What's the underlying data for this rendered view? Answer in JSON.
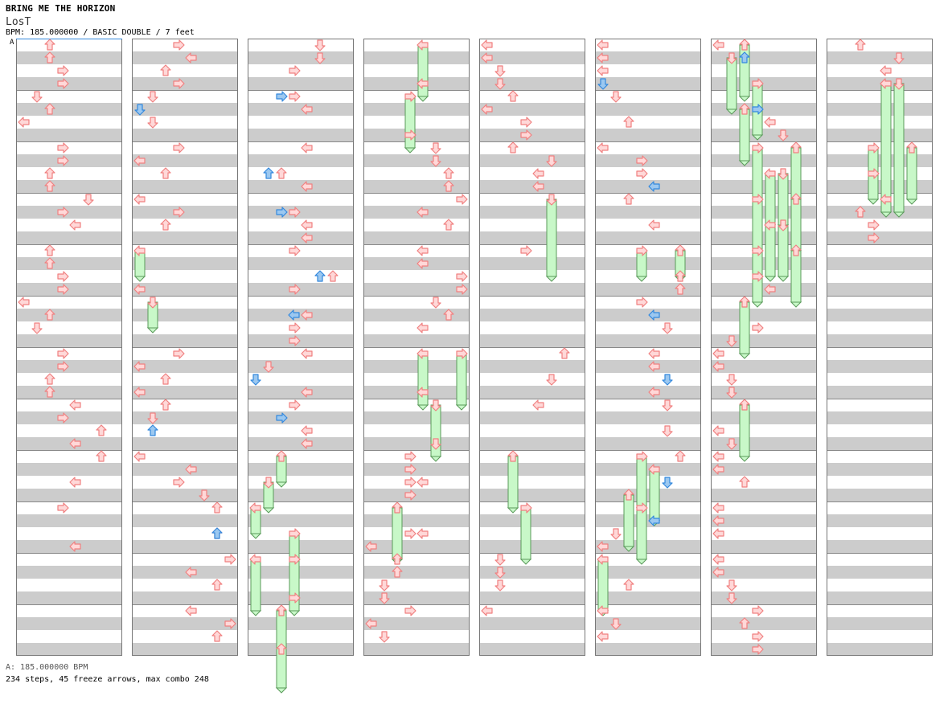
{
  "header": {
    "artist": "BRING ME THE HORIZON",
    "song_title": "LosT",
    "meta": "BPM: 185.000000 / BASIC DOUBLE / 7 feet",
    "bpm_marker": "A"
  },
  "footer": {
    "bpm_line": "A: 185.000000 BPM",
    "stats_line": "234 steps, 45 freeze arrows, max combo 248"
  },
  "colors": {
    "note_red": "#f08080",
    "note_red_fill": "#ffd8d8",
    "note_blue": "#3388dd",
    "note_blue_fill": "#9cc8f0",
    "freeze_fill": "#c8f8c8",
    "freeze_stroke": "#5a9a5a",
    "stripe_grey": "#cccccc",
    "border": "#777777"
  },
  "chart_data": {
    "type": "table",
    "columns": 8,
    "measures_per_column": 12,
    "lanes": [
      "L1",
      "D1",
      "U1",
      "R1",
      "L2",
      "D2",
      "U2",
      "R2"
    ],
    "lane_directions": [
      "left",
      "down",
      "up",
      "right",
      "left",
      "down",
      "up",
      "right"
    ],
    "notes": [
      {
        "c": 1,
        "l": 3,
        "p": 0
      },
      {
        "c": 1,
        "l": 3,
        "p": 1
      },
      {
        "c": 1,
        "l": 4,
        "p": 2
      },
      {
        "c": 1,
        "l": 4,
        "p": 3
      },
      {
        "c": 1,
        "l": 2,
        "p": 4
      },
      {
        "c": 1,
        "l": 3,
        "p": 5
      },
      {
        "c": 1,
        "l": 1,
        "p": 6
      },
      {
        "c": 1,
        "l": 4,
        "p": 8
      },
      {
        "c": 1,
        "l": 4,
        "p": 9
      },
      {
        "c": 1,
        "l": 3,
        "p": 10
      },
      {
        "c": 1,
        "l": 3,
        "p": 11
      },
      {
        "c": 1,
        "l": 6,
        "p": 12
      },
      {
        "c": 1,
        "l": 4,
        "p": 13
      },
      {
        "c": 1,
        "l": 5,
        "p": 14
      },
      {
        "c": 1,
        "l": 3,
        "p": 16
      },
      {
        "c": 1,
        "l": 3,
        "p": 17
      },
      {
        "c": 1,
        "l": 4,
        "p": 18
      },
      {
        "c": 1,
        "l": 4,
        "p": 19
      },
      {
        "c": 1,
        "l": 1,
        "p": 20
      },
      {
        "c": 1,
        "l": 3,
        "p": 21
      },
      {
        "c": 1,
        "l": 2,
        "p": 22
      },
      {
        "c": 1,
        "l": 4,
        "p": 24
      },
      {
        "c": 1,
        "l": 4,
        "p": 25
      },
      {
        "c": 1,
        "l": 3,
        "p": 26
      },
      {
        "c": 1,
        "l": 3,
        "p": 27
      },
      {
        "c": 1,
        "l": 5,
        "p": 28
      },
      {
        "c": 1,
        "l": 4,
        "p": 29
      },
      {
        "c": 1,
        "l": 7,
        "p": 30
      },
      {
        "c": 1,
        "l": 5,
        "p": 31
      },
      {
        "c": 1,
        "l": 7,
        "p": 32
      },
      {
        "c": 1,
        "l": 5,
        "p": 34
      },
      {
        "c": 1,
        "l": 4,
        "p": 36
      },
      {
        "c": 1,
        "l": 5,
        "p": 39
      },
      {
        "c": 2,
        "l": 4,
        "p": 0
      },
      {
        "c": 2,
        "l": 5,
        "p": 1
      },
      {
        "c": 2,
        "l": 3,
        "p": 2
      },
      {
        "c": 2,
        "l": 4,
        "p": 3
      },
      {
        "c": 2,
        "l": 2,
        "p": 4
      },
      {
        "c": 2,
        "l": 2,
        "p": 6
      },
      {
        "c": 2,
        "l": 4,
        "p": 8
      },
      {
        "c": 2,
        "l": 0,
        "p": 9
      },
      {
        "c": 2,
        "l": 3,
        "p": 10
      },
      {
        "c": 2,
        "l": 0,
        "p": 12
      },
      {
        "c": 2,
        "l": 4,
        "p": 13
      },
      {
        "c": 2,
        "l": 3,
        "p": 14
      },
      {
        "c": 2,
        "l": 1,
        "p": 16,
        "f": 1
      },
      {
        "c": 2,
        "l": 1,
        "p": 19
      },
      {
        "c": 2,
        "l": 2,
        "p": 20,
        "f": 1
      },
      {
        "c": 2,
        "l": 4,
        "p": 24
      },
      {
        "c": 2,
        "l": 0,
        "p": 25
      },
      {
        "c": 2,
        "l": 3,
        "p": 26
      },
      {
        "c": 2,
        "l": 1,
        "p": 27
      },
      {
        "c": 2,
        "l": 3,
        "p": 28
      },
      {
        "c": 2,
        "l": 2,
        "p": 29
      },
      {
        "c": 2,
        "l": 1,
        "p": 32
      },
      {
        "c": 2,
        "l": 5,
        "p": 33
      },
      {
        "c": 2,
        "l": 4,
        "p": 34
      },
      {
        "c": 2,
        "l": 6,
        "p": 35
      },
      {
        "c": 2,
        "l": 7,
        "p": 36
      },
      {
        "c": 2,
        "l": 7,
        "p": 38
      },
      {
        "c": 2,
        "l": 8,
        "p": 40
      },
      {
        "c": 2,
        "l": 5,
        "p": 41
      },
      {
        "c": 2,
        "l": 7,
        "p": 42
      },
      {
        "c": 2,
        "l": 5,
        "p": 44
      },
      {
        "c": 2,
        "l": 8,
        "p": 45
      },
      {
        "c": 2,
        "l": 7,
        "p": 46
      },
      {
        "c": 3,
        "l": 6,
        "p": 0
      },
      {
        "c": 3,
        "l": 6,
        "p": 1
      },
      {
        "c": 3,
        "l": 4,
        "p": 2
      },
      {
        "c": 3,
        "l": 4,
        "p": 4
      },
      {
        "c": 3,
        "l": 5,
        "p": 5
      },
      {
        "c": 3,
        "l": 5,
        "p": 8
      },
      {
        "c": 3,
        "l": 3,
        "p": 10
      },
      {
        "c": 3,
        "l": 5,
        "p": 11
      },
      {
        "c": 3,
        "l": 4,
        "p": 13
      },
      {
        "c": 3,
        "l": 5,
        "p": 14
      },
      {
        "c": 3,
        "l": 5,
        "p": 15
      },
      {
        "c": 3,
        "l": 4,
        "p": 16
      },
      {
        "c": 3,
        "l": 7,
        "p": 18
      },
      {
        "c": 3,
        "l": 4,
        "p": 19
      },
      {
        "c": 3,
        "l": 5,
        "p": 21
      },
      {
        "c": 3,
        "l": 4,
        "p": 22
      },
      {
        "c": 3,
        "l": 4,
        "p": 23
      },
      {
        "c": 3,
        "l": 5,
        "p": 24
      },
      {
        "c": 3,
        "l": 2,
        "p": 25
      },
      {
        "c": 3,
        "l": 5,
        "p": 27
      },
      {
        "c": 3,
        "l": 4,
        "p": 28
      },
      {
        "c": 3,
        "l": 5,
        "p": 30
      },
      {
        "c": 3,
        "l": 5,
        "p": 31
      },
      {
        "c": 3,
        "l": 3,
        "p": 32,
        "f": 1
      },
      {
        "c": 3,
        "l": 2,
        "p": 34,
        "f": 1
      },
      {
        "c": 3,
        "l": 1,
        "p": 36,
        "f": 1
      },
      {
        "c": 3,
        "l": 4,
        "p": 38,
        "f": 1
      },
      {
        "c": 3,
        "l": 1,
        "p": 40,
        "f": 2
      },
      {
        "c": 3,
        "l": 4,
        "p": 40,
        "f": 2
      },
      {
        "c": 3,
        "l": 4,
        "p": 43
      },
      {
        "c": 3,
        "l": 3,
        "p": 44,
        "f": 3
      },
      {
        "c": 3,
        "l": 3,
        "p": 47
      },
      {
        "c": 4,
        "l": 5,
        "p": 0,
        "f": 2
      },
      {
        "c": 4,
        "l": 5,
        "p": 3
      },
      {
        "c": 4,
        "l": 4,
        "p": 4,
        "f": 2
      },
      {
        "c": 4,
        "l": 4,
        "p": 7
      },
      {
        "c": 4,
        "l": 6,
        "p": 8
      },
      {
        "c": 4,
        "l": 6,
        "p": 9
      },
      {
        "c": 4,
        "l": 7,
        "p": 10
      },
      {
        "c": 4,
        "l": 7,
        "p": 11
      },
      {
        "c": 4,
        "l": 8,
        "p": 12
      },
      {
        "c": 4,
        "l": 5,
        "p": 13
      },
      {
        "c": 4,
        "l": 7,
        "p": 14
      },
      {
        "c": 4,
        "l": 5,
        "p": 16
      },
      {
        "c": 4,
        "l": 5,
        "p": 17
      },
      {
        "c": 4,
        "l": 8,
        "p": 18
      },
      {
        "c": 4,
        "l": 8,
        "p": 19
      },
      {
        "c": 4,
        "l": 6,
        "p": 20
      },
      {
        "c": 4,
        "l": 7,
        "p": 21
      },
      {
        "c": 4,
        "l": 5,
        "p": 22
      },
      {
        "c": 4,
        "l": 5,
        "p": 24,
        "f": 2
      },
      {
        "c": 4,
        "l": 8,
        "p": 24,
        "f": 2
      },
      {
        "c": 4,
        "l": 5,
        "p": 27
      },
      {
        "c": 4,
        "l": 6,
        "p": 28,
        "f": 2
      },
      {
        "c": 4,
        "l": 6,
        "p": 31
      },
      {
        "c": 4,
        "l": 4,
        "p": 32
      },
      {
        "c": 4,
        "l": 4,
        "p": 33
      },
      {
        "c": 4,
        "l": 4,
        "p": 34
      },
      {
        "c": 4,
        "l": 5,
        "p": 34
      },
      {
        "c": 4,
        "l": 4,
        "p": 35
      },
      {
        "c": 4,
        "l": 3,
        "p": 36,
        "f": 2
      },
      {
        "c": 4,
        "l": 4,
        "p": 38
      },
      {
        "c": 4,
        "l": 5,
        "p": 38
      },
      {
        "c": 4,
        "l": 1,
        "p": 39
      },
      {
        "c": 4,
        "l": 3,
        "p": 40
      },
      {
        "c": 4,
        "l": 3,
        "p": 41
      },
      {
        "c": 4,
        "l": 2,
        "p": 42
      },
      {
        "c": 4,
        "l": 2,
        "p": 43
      },
      {
        "c": 4,
        "l": 4,
        "p": 44
      },
      {
        "c": 4,
        "l": 1,
        "p": 45
      },
      {
        "c": 4,
        "l": 2,
        "p": 46
      },
      {
        "c": 5,
        "l": 0,
        "p": 0
      },
      {
        "c": 5,
        "l": 1,
        "p": 1
      },
      {
        "c": 5,
        "l": 2,
        "p": 2
      },
      {
        "c": 5,
        "l": 2,
        "p": 3
      },
      {
        "c": 5,
        "l": 3,
        "p": 4
      },
      {
        "c": 5,
        "l": 1,
        "p": 5
      },
      {
        "c": 5,
        "l": 4,
        "p": 6
      },
      {
        "c": 5,
        "l": 4,
        "p": 7
      },
      {
        "c": 5,
        "l": 3,
        "p": 8
      },
      {
        "c": 5,
        "l": 6,
        "p": 9
      },
      {
        "c": 5,
        "l": 5,
        "p": 10
      },
      {
        "c": 5,
        "l": 5,
        "p": 11
      },
      {
        "c": 5,
        "l": 6,
        "p": 12,
        "f": 3
      },
      {
        "c": 5,
        "l": 4,
        "p": 16
      },
      {
        "c": 5,
        "l": 7,
        "p": 24
      },
      {
        "c": 5,
        "l": 6,
        "p": 26
      },
      {
        "c": 5,
        "l": 5,
        "p": 28
      },
      {
        "c": 5,
        "l": 3,
        "p": 32,
        "f": 2
      },
      {
        "c": 5,
        "l": 4,
        "p": 36,
        "f": 2
      },
      {
        "c": 5,
        "l": 2,
        "p": 40
      },
      {
        "c": 5,
        "l": 2,
        "p": 41
      },
      {
        "c": 5,
        "l": 2,
        "p": 42
      },
      {
        "c": 5,
        "l": 1,
        "p": 44
      },
      {
        "c": 6,
        "l": 0,
        "p": 0
      },
      {
        "c": 6,
        "l": 1,
        "p": 1
      },
      {
        "c": 6,
        "l": 1,
        "p": 2
      },
      {
        "c": 6,
        "l": 2,
        "p": 4
      },
      {
        "c": 6,
        "l": 3,
        "p": 6
      },
      {
        "c": 6,
        "l": 1,
        "p": 8
      },
      {
        "c": 6,
        "l": 4,
        "p": 9
      },
      {
        "c": 6,
        "l": 4,
        "p": 10
      },
      {
        "c": 6,
        "l": 3,
        "p": 12
      },
      {
        "c": 6,
        "l": 5,
        "p": 14
      },
      {
        "c": 6,
        "l": 4,
        "p": 16,
        "f": 1
      },
      {
        "c": 6,
        "l": 7,
        "p": 16,
        "f": 1
      },
      {
        "c": 6,
        "l": 7,
        "p": 18
      },
      {
        "c": 6,
        "l": 7,
        "p": 19
      },
      {
        "c": 6,
        "l": 4,
        "p": 20
      },
      {
        "c": 6,
        "l": 6,
        "p": 22
      },
      {
        "c": 6,
        "l": 5,
        "p": 24
      },
      {
        "c": 6,
        "l": 5,
        "p": 25
      },
      {
        "c": 6,
        "l": 5,
        "p": 27
      },
      {
        "c": 6,
        "l": 6,
        "p": 28
      },
      {
        "c": 6,
        "l": 6,
        "p": 30
      },
      {
        "c": 6,
        "l": 4,
        "p": 32,
        "f": 2
      },
      {
        "c": 6,
        "l": 7,
        "p": 32
      },
      {
        "c": 6,
        "l": 5,
        "p": 33,
        "f": 2
      },
      {
        "c": 6,
        "l": 3,
        "p": 35,
        "f": 2
      },
      {
        "c": 6,
        "l": 4,
        "p": 36,
        "f": 2
      },
      {
        "c": 6,
        "l": 2,
        "p": 38
      },
      {
        "c": 6,
        "l": 1,
        "p": 39
      },
      {
        "c": 6,
        "l": 0,
        "p": 40,
        "f": 2
      },
      {
        "c": 6,
        "l": 3,
        "p": 42
      },
      {
        "c": 6,
        "l": 0,
        "p": 44
      },
      {
        "c": 6,
        "l": 2,
        "p": 45
      },
      {
        "c": 6,
        "l": 1,
        "p": 46
      },
      {
        "c": 7,
        "l": 0,
        "p": 0
      },
      {
        "c": 7,
        "l": 3,
        "p": 0,
        "f": 2
      },
      {
        "c": 7,
        "l": 2,
        "p": 1,
        "f": 2
      },
      {
        "c": 7,
        "l": 4,
        "p": 3,
        "f": 2
      },
      {
        "c": 7,
        "l": 3,
        "p": 5,
        "f": 2
      },
      {
        "c": 7,
        "l": 5,
        "p": 6
      },
      {
        "c": 7,
        "l": 6,
        "p": 7
      },
      {
        "c": 7,
        "l": 4,
        "p": 8,
        "f": 2
      },
      {
        "c": 7,
        "l": 7,
        "p": 8,
        "f": 2
      },
      {
        "c": 7,
        "l": 5,
        "p": 10,
        "f": 2
      },
      {
        "c": 7,
        "l": 6,
        "p": 10,
        "f": 2
      },
      {
        "c": 7,
        "l": 4,
        "p": 12,
        "f": 2
      },
      {
        "c": 7,
        "l": 7,
        "p": 12,
        "f": 2
      },
      {
        "c": 7,
        "l": 5,
        "p": 14,
        "f": 2
      },
      {
        "c": 7,
        "l": 6,
        "p": 14,
        "f": 2
      },
      {
        "c": 7,
        "l": 4,
        "p": 16,
        "f": 2
      },
      {
        "c": 7,
        "l": 7,
        "p": 16,
        "f": 2
      },
      {
        "c": 7,
        "l": 4,
        "p": 18
      },
      {
        "c": 7,
        "l": 5,
        "p": 19
      },
      {
        "c": 7,
        "l": 3,
        "p": 20,
        "f": 2
      },
      {
        "c": 7,
        "l": 4,
        "p": 22
      },
      {
        "c": 7,
        "l": 2,
        "p": 23
      },
      {
        "c": 7,
        "l": 1,
        "p": 24
      },
      {
        "c": 7,
        "l": 1,
        "p": 25
      },
      {
        "c": 7,
        "l": 2,
        "p": 26
      },
      {
        "c": 7,
        "l": 2,
        "p": 27
      },
      {
        "c": 7,
        "l": 3,
        "p": 28,
        "f": 2
      },
      {
        "c": 7,
        "l": 0,
        "p": 30
      },
      {
        "c": 7,
        "l": 2,
        "p": 31
      },
      {
        "c": 7,
        "l": 1,
        "p": 32
      },
      {
        "c": 7,
        "l": 1,
        "p": 33
      },
      {
        "c": 7,
        "l": 3,
        "p": 34
      },
      {
        "c": 7,
        "l": 0,
        "p": 36
      },
      {
        "c": 7,
        "l": 0,
        "p": 37
      },
      {
        "c": 7,
        "l": 1,
        "p": 38
      },
      {
        "c": 7,
        "l": 0,
        "p": 40
      },
      {
        "c": 7,
        "l": 1,
        "p": 41
      },
      {
        "c": 7,
        "l": 2,
        "p": 42
      },
      {
        "c": 7,
        "l": 2,
        "p": 43
      },
      {
        "c": 7,
        "l": 4,
        "p": 44
      },
      {
        "c": 7,
        "l": 3,
        "p": 45
      },
      {
        "c": 7,
        "l": 4,
        "p": 46
      },
      {
        "c": 7,
        "l": 4,
        "p": 47
      },
      {
        "c": 8,
        "l": 3,
        "p": 0
      },
      {
        "c": 8,
        "l": 6,
        "p": 1
      },
      {
        "c": 8,
        "l": 5,
        "p": 2
      },
      {
        "c": 8,
        "l": 5,
        "p": 3
      },
      {
        "c": 8,
        "l": 5,
        "p": 3,
        "f": 5
      },
      {
        "c": 8,
        "l": 6,
        "p": 3,
        "f": 5
      },
      {
        "c": 8,
        "l": 4,
        "p": 8,
        "f": 2
      },
      {
        "c": 8,
        "l": 7,
        "p": 8,
        "f": 2
      },
      {
        "c": 8,
        "l": 4,
        "p": 10
      },
      {
        "c": 8,
        "l": 5,
        "p": 12
      },
      {
        "c": 8,
        "l": 3,
        "p": 13
      },
      {
        "c": 8,
        "l": 4,
        "p": 14
      },
      {
        "c": 8,
        "l": 4,
        "p": 15
      }
    ]
  }
}
